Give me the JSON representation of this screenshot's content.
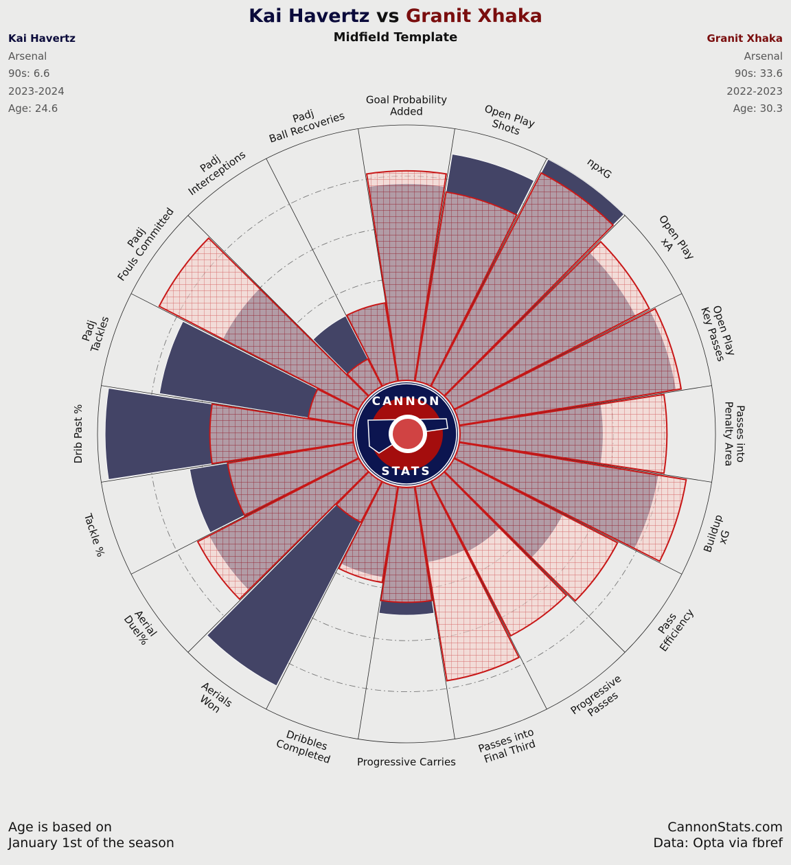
{
  "header": {
    "player1": "Kai Havertz",
    "vs": "vs",
    "player2": "Granit Xhaka",
    "subtitle": "Midfield Template"
  },
  "player1_info": {
    "name": "Kai Havertz",
    "club": "Arsenal",
    "nineties": "90s: 6.6",
    "season": "2023-2024",
    "age": "Age: 24.6"
  },
  "player2_info": {
    "name": "Granit Xhaka",
    "club": "Arsenal",
    "nineties": "90s: 33.6",
    "season": "2022-2023",
    "age": "Age: 30.3"
  },
  "logo": {
    "top": "CANNON",
    "bottom": "STATS"
  },
  "footer": {
    "left_line1": "Age is based on",
    "left_line2": "January 1st of the season",
    "right_line1": "CannonStats.com",
    "right_line2": "Data: Opta via fbref"
  },
  "colors": {
    "player1": "#434466",
    "player2_edge": "#c81818",
    "player2_fill": "#f6d2cd",
    "background": "#ebebea",
    "logo_ring": "#0c1550",
    "logo_inner": "#a40d0d"
  },
  "chart_data": {
    "type": "polar_bar",
    "categories": [
      [
        "Goal Probability",
        "Added"
      ],
      [
        "Open Play",
        "Shots"
      ],
      [
        "npxG"
      ],
      [
        "Open Play",
        "xA"
      ],
      [
        "Open Play",
        "Key Passes"
      ],
      [
        "Passes into",
        "Penalty Area"
      ],
      [
        "Buildup",
        "xG"
      ],
      [
        "Pass",
        "Efficiency"
      ],
      [
        "Progressive",
        "Passes"
      ],
      [
        "Passes into",
        "Final Third"
      ],
      [
        "Progressive Carries"
      ],
      [
        "Dribbles",
        "Completed"
      ],
      [
        "Aerials",
        "Won"
      ],
      [
        "Aerial",
        "Duel%"
      ],
      [
        "Tackle %"
      ],
      [
        "Drib Past %"
      ],
      [
        "Padj",
        "Tackles"
      ],
      [
        "Padj",
        "Fouls Committed"
      ],
      [
        "Padj",
        "Interceptions"
      ],
      [
        "Padj",
        "Ball Recoveries"
      ]
    ],
    "series": [
      {
        "name": "Kai Havertz",
        "values": [
          77,
          90,
          100,
          80,
          86,
          56,
          79,
          48,
          31,
          30,
          50,
          36,
          90,
          66,
          65,
          97,
          77,
          60,
          31,
          31
        ]
      },
      {
        "name": "Granit Xhaka",
        "values": [
          82,
          75,
          94,
          86,
          88,
          81,
          90,
          72,
          68,
          77,
          45,
          38,
          18,
          71,
          50,
          56,
          18,
          88,
          12,
          31
        ]
      }
    ],
    "ylim": [
      0,
      100
    ],
    "grid": true
  }
}
